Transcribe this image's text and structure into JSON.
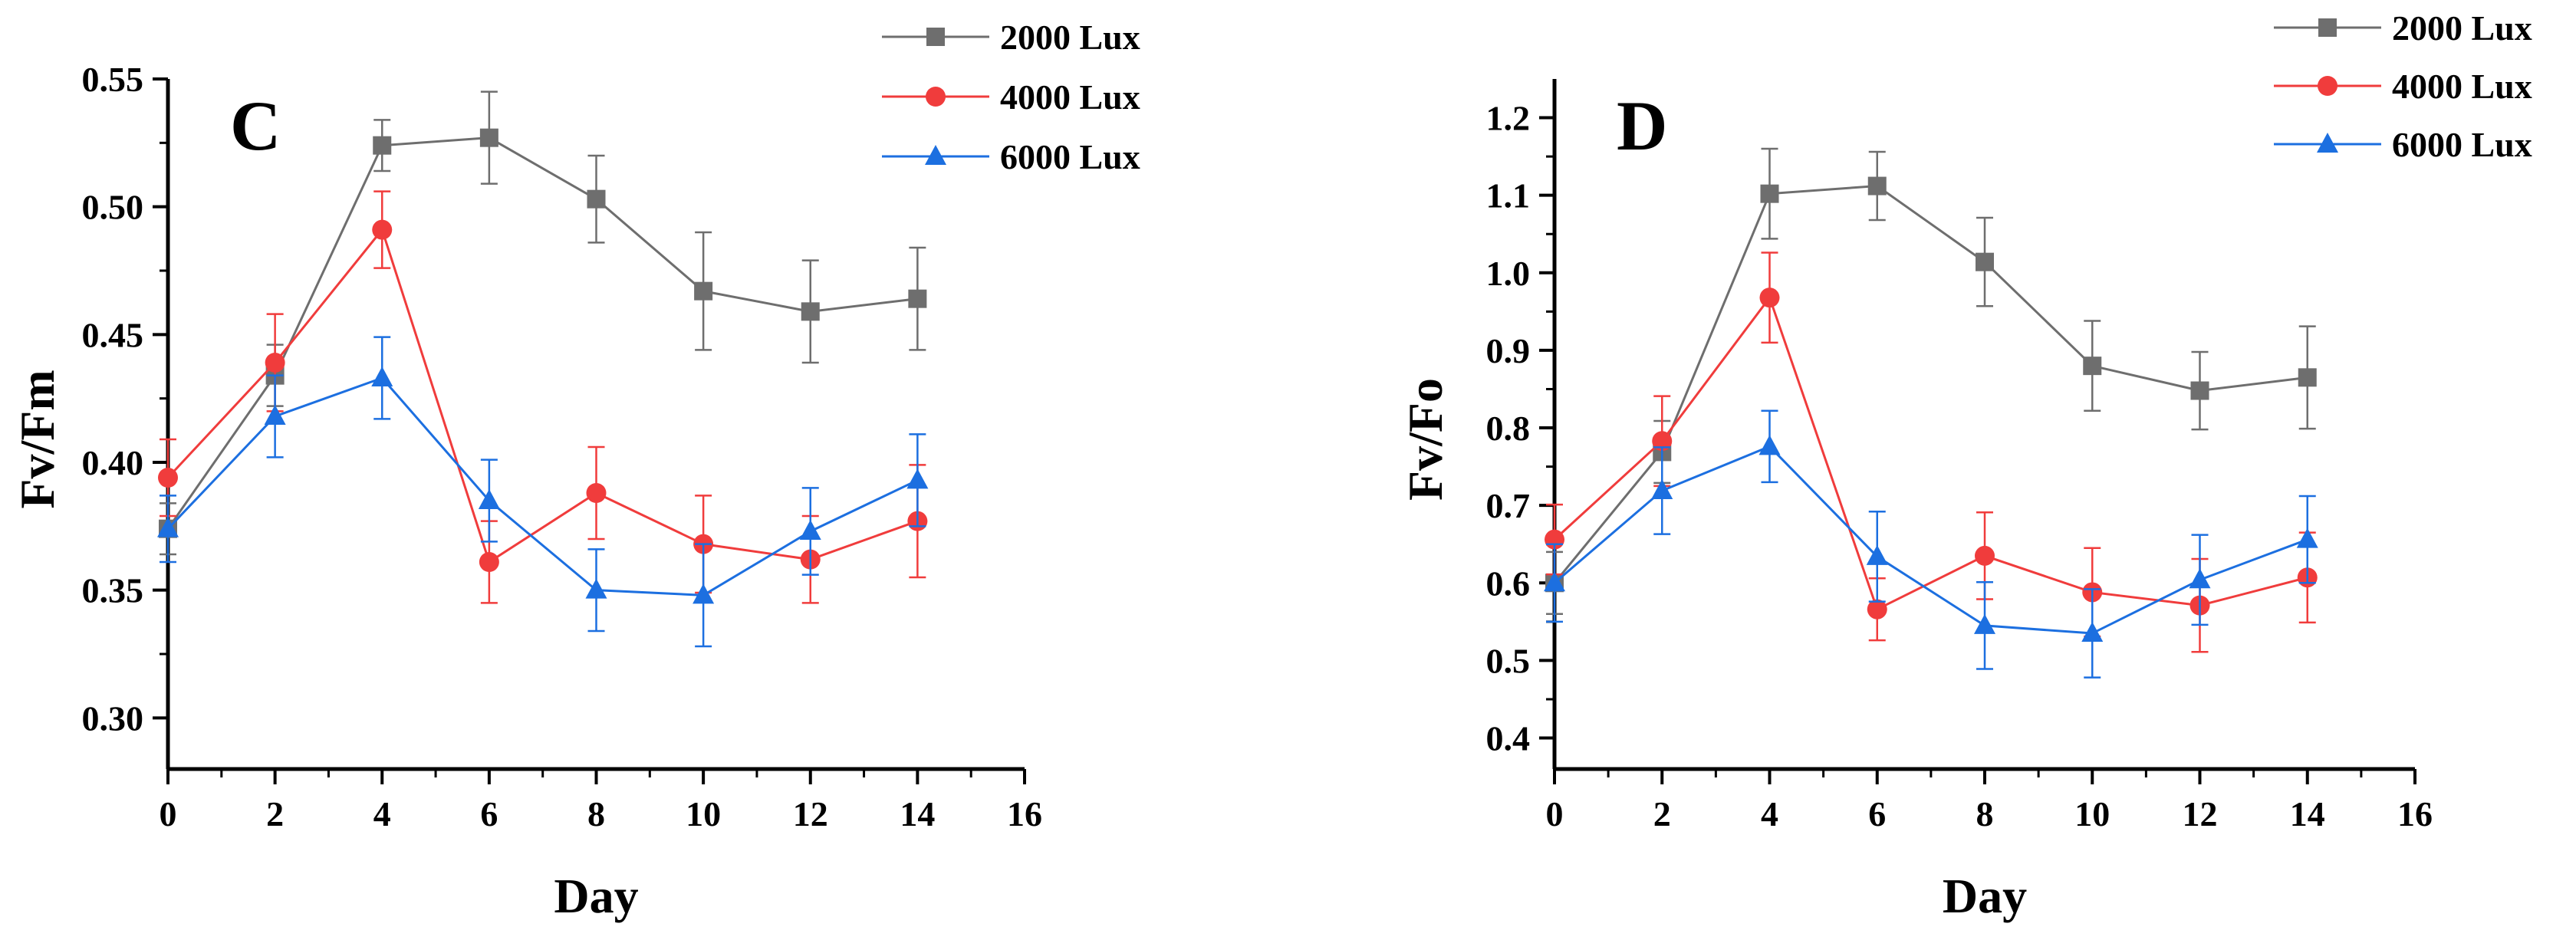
{
  "chart_data": [
    {
      "type": "line",
      "panel_label": "C",
      "xlabel": "Day",
      "ylabel": "Fv/Fm",
      "xlim": [
        0,
        16
      ],
      "ylim": [
        0.28,
        0.55
      ],
      "x_ticks": [
        0,
        2,
        4,
        6,
        8,
        10,
        12,
        14,
        16
      ],
      "y_ticks": [
        0.3,
        0.35,
        0.4,
        0.45,
        0.5,
        0.55
      ],
      "y_decimals": 2,
      "legend_position": "top-right",
      "x": [
        0,
        2,
        4,
        6,
        8,
        10,
        12,
        14
      ],
      "series": [
        {
          "name": "2000 Lux",
          "color": "#6e6e6e",
          "marker": "square",
          "values": [
            0.374,
            0.434,
            0.524,
            0.527,
            0.503,
            0.467,
            0.459,
            0.464
          ],
          "errors": [
            0.01,
            0.012,
            0.01,
            0.018,
            0.017,
            0.023,
            0.02,
            0.02
          ]
        },
        {
          "name": "4000 Lux",
          "color": "#f03c3c",
          "marker": "circle",
          "values": [
            0.394,
            0.439,
            0.491,
            0.361,
            0.388,
            0.368,
            0.362,
            0.377
          ],
          "errors": [
            0.015,
            0.019,
            0.015,
            0.016,
            0.018,
            0.019,
            0.017,
            0.022
          ]
        },
        {
          "name": "6000 Lux",
          "color": "#1c6fe0",
          "marker": "triangle",
          "values": [
            0.374,
            0.418,
            0.433,
            0.385,
            0.35,
            0.348,
            0.373,
            0.393
          ],
          "errors": [
            0.013,
            0.016,
            0.016,
            0.016,
            0.016,
            0.02,
            0.017,
            0.018
          ]
        }
      ]
    },
    {
      "type": "line",
      "panel_label": "D",
      "xlabel": "Day",
      "ylabel": "Fv/Fo",
      "xlim": [
        0,
        16
      ],
      "ylim": [
        0.36,
        1.25
      ],
      "x_ticks": [
        0,
        2,
        4,
        6,
        8,
        10,
        12,
        14,
        16
      ],
      "y_ticks": [
        0.4,
        0.5,
        0.6,
        0.7,
        0.8,
        0.9,
        1.0,
        1.1,
        1.2
      ],
      "y_decimals": 1,
      "legend_position": "top-right",
      "x": [
        0,
        2,
        4,
        6,
        8,
        10,
        12,
        14
      ],
      "series": [
        {
          "name": "2000 Lux",
          "color": "#6e6e6e",
          "marker": "square",
          "values": [
            0.6,
            0.769,
            1.102,
            1.112,
            1.014,
            0.88,
            0.848,
            0.865
          ],
          "errors": [
            0.04,
            0.04,
            0.058,
            0.044,
            0.057,
            0.058,
            0.05,
            0.066
          ]
        },
        {
          "name": "4000 Lux",
          "color": "#f03c3c",
          "marker": "circle",
          "values": [
            0.656,
            0.783,
            0.968,
            0.566,
            0.635,
            0.588,
            0.571,
            0.607
          ],
          "errors": [
            0.045,
            0.058,
            0.058,
            0.04,
            0.056,
            0.057,
            0.06,
            0.058
          ]
        },
        {
          "name": "6000 Lux",
          "color": "#1c6fe0",
          "marker": "triangle",
          "values": [
            0.6,
            0.719,
            0.776,
            0.634,
            0.545,
            0.535,
            0.604,
            0.656
          ],
          "errors": [
            0.05,
            0.056,
            0.046,
            0.058,
            0.056,
            0.057,
            0.058,
            0.056
          ]
        }
      ]
    }
  ]
}
